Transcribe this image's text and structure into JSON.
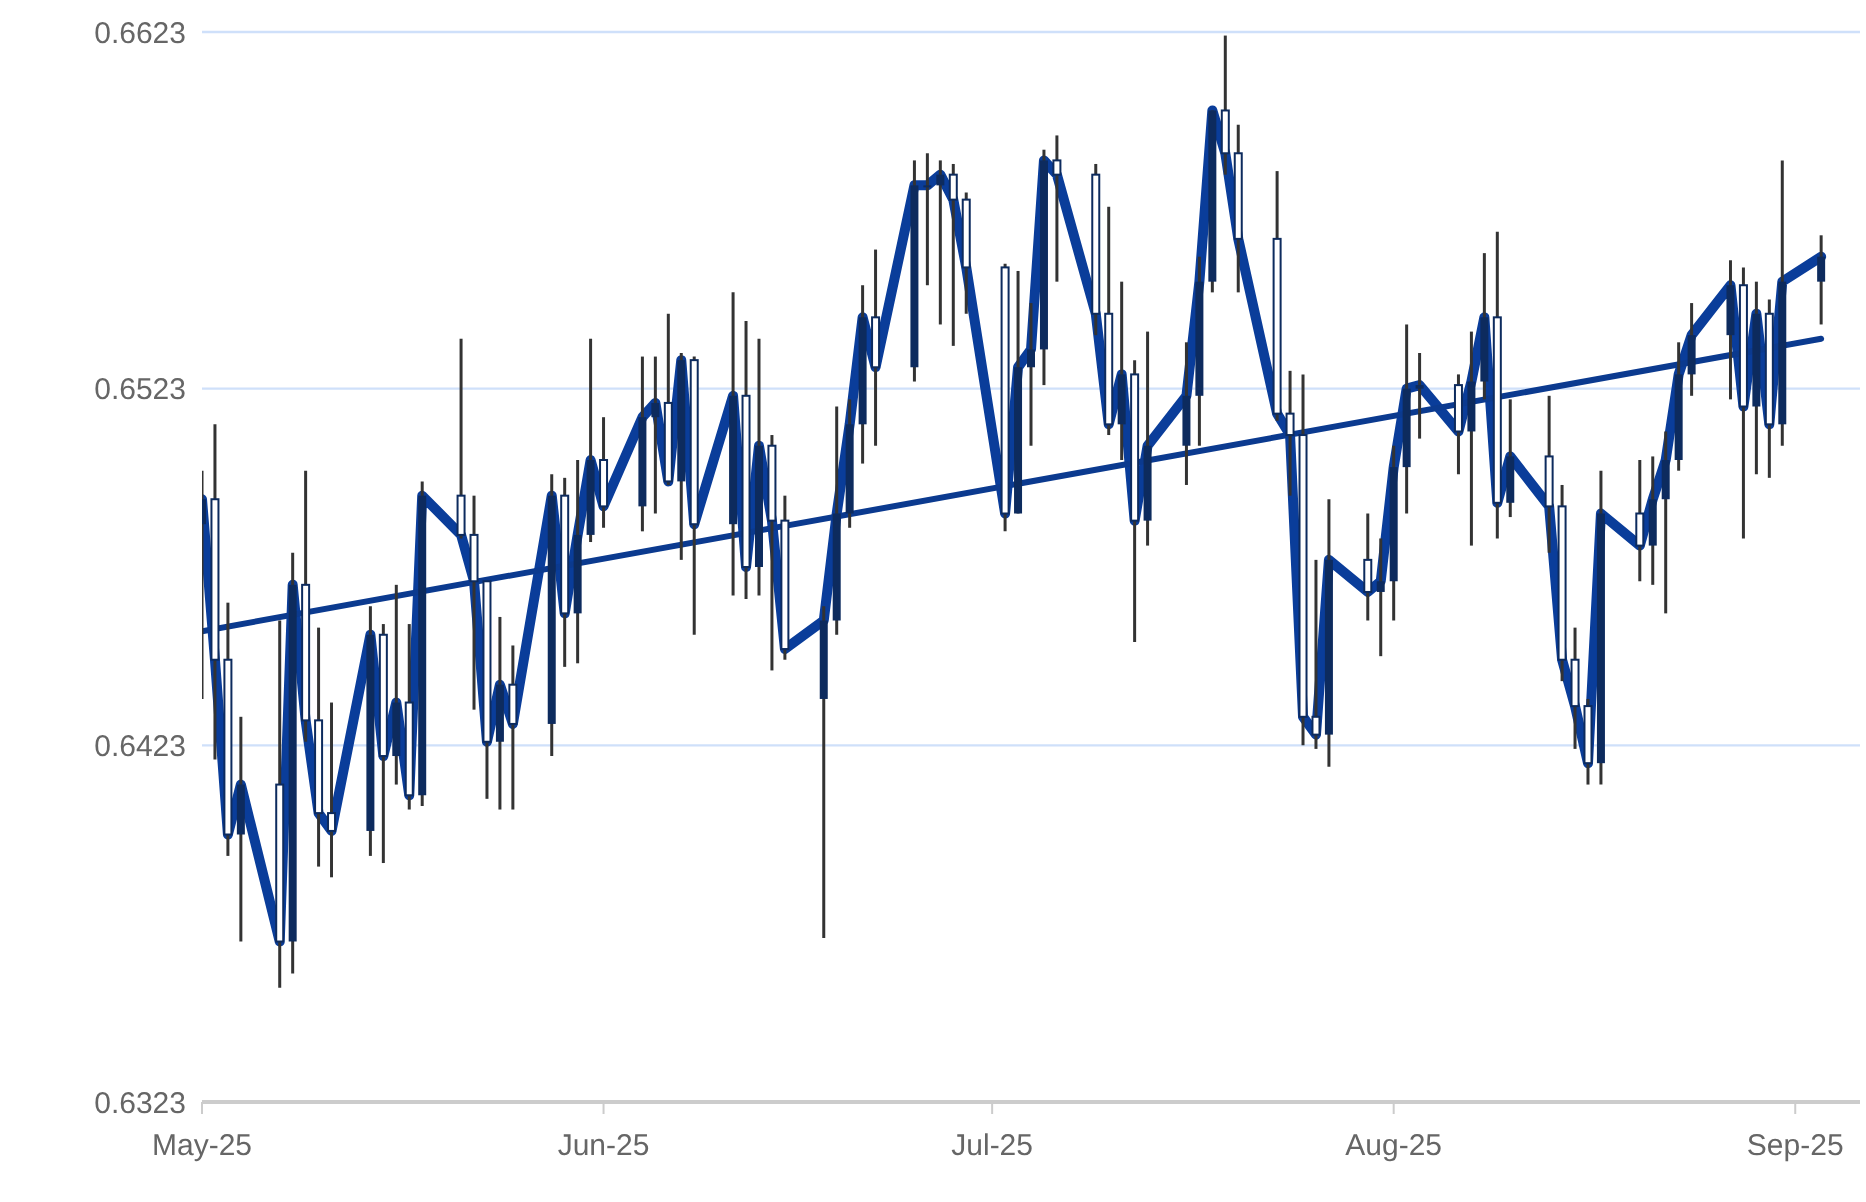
{
  "chart_data": {
    "type": "candlestick",
    "color": "#0d2b5e",
    "x": [
      "2025-05-01",
      "2025-05-02",
      "2025-05-03",
      "2025-05-04",
      "2025-05-07",
      "2025-05-08",
      "2025-05-09",
      "2025-05-10",
      "2025-05-11",
      "2025-05-14",
      "2025-05-15",
      "2025-05-16",
      "2025-05-17",
      "2025-05-18",
      "2025-05-21",
      "2025-05-22",
      "2025-05-23",
      "2025-05-24",
      "2025-05-25",
      "2025-05-28",
      "2025-05-29",
      "2025-05-30",
      "2025-05-31",
      "2025-06-01",
      "2025-06-04",
      "2025-06-05",
      "2025-06-06",
      "2025-06-07",
      "2025-06-08",
      "2025-06-11",
      "2025-06-12",
      "2025-06-13",
      "2025-06-14",
      "2025-06-15",
      "2025-06-18",
      "2025-06-19",
      "2025-06-20",
      "2025-06-21",
      "2025-06-22",
      "2025-06-25",
      "2025-06-26",
      "2025-06-27",
      "2025-06-28",
      "2025-06-29",
      "2025-07-02",
      "2025-07-03",
      "2025-07-04",
      "2025-07-05",
      "2025-07-06",
      "2025-07-09",
      "2025-07-10",
      "2025-07-11",
      "2025-07-12",
      "2025-07-13",
      "2025-07-16",
      "2025-07-17",
      "2025-07-18",
      "2025-07-19",
      "2025-07-20",
      "2025-07-23",
      "2025-07-24",
      "2025-07-25",
      "2025-07-26",
      "2025-07-27",
      "2025-07-30",
      "2025-07-31",
      "2025-08-01",
      "2025-08-02",
      "2025-08-03",
      "2025-08-06",
      "2025-08-07",
      "2025-08-08",
      "2025-08-09",
      "2025-08-10",
      "2025-08-13",
      "2025-08-14",
      "2025-08-15",
      "2025-08-16",
      "2025-08-17",
      "2025-08-20",
      "2025-08-21",
      "2025-08-22",
      "2025-08-23",
      "2025-08-24",
      "2025-08-27",
      "2025-08-28",
      "2025-08-29",
      "2025-08-30",
      "2025-08-31",
      "2025-09-03"
    ],
    "ohlc": [
      [
        0.6485,
        0.65,
        0.6436,
        0.6492
      ],
      [
        0.6492,
        0.6513,
        0.6419,
        0.6447
      ],
      [
        0.6447,
        0.6463,
        0.6392,
        0.6398
      ],
      [
        0.6398,
        0.6431,
        0.6368,
        0.6412
      ],
      [
        0.6412,
        0.6458,
        0.6355,
        0.6368
      ],
      [
        0.6368,
        0.6477,
        0.6359,
        0.6468
      ],
      [
        0.6468,
        0.65,
        0.6424,
        0.643
      ],
      [
        0.643,
        0.6456,
        0.6389,
        0.6404
      ],
      [
        0.6404,
        0.6435,
        0.6386,
        0.6399
      ],
      [
        0.6399,
        0.6462,
        0.6392,
        0.6454
      ],
      [
        0.6454,
        0.6457,
        0.639,
        0.642
      ],
      [
        0.642,
        0.6468,
        0.6412,
        0.6435
      ],
      [
        0.6435,
        0.6457,
        0.6405,
        0.6409
      ],
      [
        0.6409,
        0.6497,
        0.6406,
        0.6493
      ],
      [
        0.6493,
        0.6537,
        0.6481,
        0.6482
      ],
      [
        0.6482,
        0.6493,
        0.6433,
        0.6469
      ],
      [
        0.6469,
        0.6469,
        0.6408,
        0.6424
      ],
      [
        0.6424,
        0.6459,
        0.6405,
        0.644
      ],
      [
        0.644,
        0.6451,
        0.6405,
        0.6429
      ],
      [
        0.6429,
        0.6499,
        0.642,
        0.6493
      ],
      [
        0.6493,
        0.6498,
        0.6445,
        0.646
      ],
      [
        0.646,
        0.6503,
        0.6446,
        0.6482
      ],
      [
        0.6482,
        0.6537,
        0.648,
        0.6503
      ],
      [
        0.6503,
        0.6515,
        0.6484,
        0.649
      ],
      [
        0.649,
        0.6532,
        0.6483,
        0.6515
      ],
      [
        0.6515,
        0.6532,
        0.6488,
        0.6519
      ],
      [
        0.6519,
        0.6544,
        0.6496,
        0.6497
      ],
      [
        0.6497,
        0.6533,
        0.6475,
        0.6531
      ],
      [
        0.6531,
        0.6532,
        0.6454,
        0.6485
      ],
      [
        0.6485,
        0.655,
        0.6465,
        0.6521
      ],
      [
        0.6521,
        0.6542,
        0.6464,
        0.6473
      ],
      [
        0.6473,
        0.6537,
        0.6465,
        0.6507
      ],
      [
        0.6507,
        0.651,
        0.6444,
        0.6486
      ],
      [
        0.6486,
        0.6493,
        0.6447,
        0.645
      ],
      [
        0.6436,
        0.6462,
        0.6369,
        0.6458
      ],
      [
        0.6458,
        0.6518,
        0.6454,
        0.6488
      ],
      [
        0.6488,
        0.652,
        0.6484,
        0.6513
      ],
      [
        0.6513,
        0.6552,
        0.6502,
        0.6543
      ],
      [
        0.6543,
        0.6562,
        0.6507,
        0.6529
      ],
      [
        0.6529,
        0.6587,
        0.6525,
        0.658
      ],
      [
        0.658,
        0.6589,
        0.6552,
        0.658
      ],
      [
        0.658,
        0.6587,
        0.6541,
        0.6583
      ],
      [
        0.6583,
        0.6586,
        0.6535,
        0.6576
      ],
      [
        0.6576,
        0.6578,
        0.6544,
        0.6557
      ],
      [
        0.6557,
        0.6558,
        0.6483,
        0.6488
      ],
      [
        0.6488,
        0.6556,
        0.6488,
        0.6529
      ],
      [
        0.6529,
        0.6547,
        0.6507,
        0.6534
      ],
      [
        0.6534,
        0.659,
        0.6524,
        0.6587
      ],
      [
        0.6587,
        0.6594,
        0.6553,
        0.6583
      ],
      [
        0.6583,
        0.6586,
        0.6538,
        0.6544
      ],
      [
        0.6544,
        0.6574,
        0.651,
        0.6513
      ],
      [
        0.6513,
        0.6553,
        0.6503,
        0.6527
      ],
      [
        0.6527,
        0.6531,
        0.6452,
        0.6486
      ],
      [
        0.6486,
        0.6539,
        0.6479,
        0.6507
      ],
      [
        0.6507,
        0.6536,
        0.6496,
        0.6521
      ],
      [
        0.6521,
        0.656,
        0.6507,
        0.6553
      ],
      [
        0.6553,
        0.6601,
        0.655,
        0.6601
      ],
      [
        0.6601,
        0.6622,
        0.6583,
        0.6589
      ],
      [
        0.6589,
        0.6597,
        0.655,
        0.6565
      ],
      [
        0.6565,
        0.6584,
        0.6514,
        0.6516
      ],
      [
        0.6516,
        0.6528,
        0.6493,
        0.651
      ],
      [
        0.651,
        0.6527,
        0.6423,
        0.6431
      ],
      [
        0.6431,
        0.6475,
        0.6422,
        0.6426
      ],
      [
        0.6426,
        0.6492,
        0.6417,
        0.6475
      ],
      [
        0.6475,
        0.6488,
        0.6458,
        0.6466
      ],
      [
        0.6466,
        0.6481,
        0.6448,
        0.6469
      ],
      [
        0.6469,
        0.6507,
        0.6458,
        0.6501
      ],
      [
        0.6501,
        0.6541,
        0.6488,
        0.6523
      ],
      [
        0.6523,
        0.6533,
        0.6509,
        0.6524
      ],
      [
        0.6524,
        0.6527,
        0.6499,
        0.6511
      ],
      [
        0.6511,
        0.6539,
        0.6479,
        0.6525
      ],
      [
        0.6525,
        0.6561,
        0.652,
        0.6543
      ],
      [
        0.6543,
        0.6567,
        0.6481,
        0.6491
      ],
      [
        0.6491,
        0.652,
        0.6487,
        0.6504
      ],
      [
        0.6504,
        0.6521,
        0.6477,
        0.649
      ],
      [
        0.649,
        0.6496,
        0.6441,
        0.6447
      ],
      [
        0.6447,
        0.6456,
        0.6422,
        0.6434
      ],
      [
        0.6434,
        0.6436,
        0.6412,
        0.6418
      ],
      [
        0.6418,
        0.65,
        0.6412,
        0.6488
      ],
      [
        0.6488,
        0.6503,
        0.6469,
        0.6479
      ],
      [
        0.6479,
        0.6504,
        0.6468,
        0.6492
      ],
      [
        0.6492,
        0.6511,
        0.646,
        0.6503
      ],
      [
        0.6503,
        0.6536,
        0.65,
        0.6527
      ],
      [
        0.6527,
        0.6547,
        0.6521,
        0.6538
      ],
      [
        0.6538,
        0.6559,
        0.652,
        0.6552
      ],
      [
        0.6552,
        0.6557,
        0.6481,
        0.6518
      ],
      [
        0.6518,
        0.6553,
        0.6499,
        0.6544
      ],
      [
        0.6544,
        0.6548,
        0.6498,
        0.6513
      ],
      [
        0.6513,
        0.6587,
        0.6507,
        0.6553
      ],
      [
        0.6553,
        0.6566,
        0.6541,
        0.656
      ]
    ],
    "series": [
      {
        "type": "line",
        "color": "#0a3d9a",
        "values": [
          0.6492,
          0.6447,
          0.6398,
          0.6412,
          0.6368,
          0.6468,
          0.643,
          0.6404,
          0.6399,
          0.6454,
          0.642,
          0.6435,
          0.6409,
          0.6493,
          0.6482,
          0.6469,
          0.6424,
          0.644,
          0.6429,
          0.6493,
          0.646,
          0.6482,
          0.6503,
          0.649,
          0.6515,
          0.6519,
          0.6497,
          0.6531,
          0.6485,
          0.6521,
          0.6473,
          0.6507,
          0.6486,
          0.645,
          0.6458,
          0.6488,
          0.6513,
          0.6543,
          0.6529,
          0.658,
          0.658,
          0.6583,
          0.6576,
          0.6557,
          0.6488,
          0.6529,
          0.6534,
          0.6587,
          0.6583,
          0.6544,
          0.6513,
          0.6527,
          0.6486,
          0.6507,
          0.6521,
          0.6553,
          0.6601,
          0.6589,
          0.6565,
          0.6516,
          0.651,
          0.6431,
          0.6426,
          0.6475,
          0.6466,
          0.6469,
          0.6501,
          0.6523,
          0.6524,
          0.6511,
          0.6525,
          0.6543,
          0.6491,
          0.6504,
          0.649,
          0.6447,
          0.6434,
          0.6418,
          0.6488,
          0.6479,
          0.6492,
          0.6503,
          0.6527,
          0.6538,
          0.6552,
          0.6518,
          0.6544,
          0.6513,
          0.6553,
          0.656
        ]
      },
      {
        "type": "line",
        "color": "#0b3a8f",
        "x": [
          "2025-05-01",
          "2025-09-03"
        ],
        "values": [
          0.6455,
          0.6537
        ]
      }
    ],
    "xlim": [
      "2025-05-01",
      "2025-09-06"
    ],
    "xticks": [
      {
        "value": "2025-05-01",
        "label": "May-25"
      },
      {
        "value": "2025-06-01",
        "label": "Jun-25"
      },
      {
        "value": "2025-07-01",
        "label": "Jul-25"
      },
      {
        "value": "2025-08-01",
        "label": "Aug-25"
      },
      {
        "value": "2025-09-01",
        "label": "Sep-25"
      }
    ],
    "ylim": [
      0.6323,
      0.6623
    ],
    "yticks": [
      0.6323,
      0.6423,
      0.6523,
      0.6623
    ],
    "grid": "y"
  }
}
